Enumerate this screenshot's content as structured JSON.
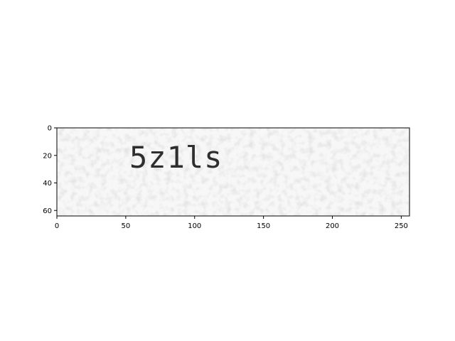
{
  "figure": {
    "background": "#ffffff",
    "image_kind": "captcha",
    "captcha_text": "5z1ls",
    "noise_color": "#cfcfcf",
    "axes_color": "#000000"
  },
  "chart_data": {
    "type": "image",
    "xlim": [
      0,
      256
    ],
    "ylim": [
      64,
      0
    ],
    "xticks": [
      0,
      50,
      100,
      150,
      200,
      250
    ],
    "yticks": [
      0,
      20,
      40,
      60
    ],
    "xlabel": "",
    "ylabel": "",
    "title": "",
    "grid": false,
    "legend": "none"
  }
}
